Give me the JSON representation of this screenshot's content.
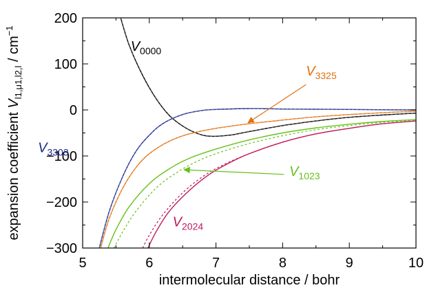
{
  "chart_data": {
    "type": "line",
    "title": "",
    "xlabel": "intermolecular distance / bohr",
    "ylabel": {
      "prefix": "expansion coefficient ",
      "symbol": "V",
      "subscript": "l1,μ1,l2,l",
      "unit": " / cm",
      "unit_exp": "−1"
    },
    "xlim": [
      5,
      10
    ],
    "ylim": [
      -300,
      200
    ],
    "xticks": [
      5,
      6,
      7,
      8,
      9,
      10
    ],
    "yticks": [
      -300,
      -200,
      -100,
      0,
      100,
      200
    ],
    "ytick_labels": [
      "−300",
      "−200",
      "−100",
      "0",
      "100",
      "200"
    ],
    "grid": false,
    "series": [
      {
        "name": "V0000",
        "label_main": "V",
        "label_sub": "0000",
        "color": "#000000",
        "style": "solid+dashed",
        "x": [
          5.57,
          5.7,
          5.9,
          6.1,
          6.3,
          6.5,
          6.7,
          6.9,
          7.2,
          7.5,
          8.0,
          8.5,
          9.0,
          9.5,
          10.0
        ],
        "y": [
          200,
          140,
          75,
          25,
          -12,
          -35,
          -50,
          -57,
          -55,
          -47,
          -34,
          -24,
          -16,
          -11,
          -7
        ]
      },
      {
        "name": "V3303",
        "label_main": "V",
        "label_sub": "3303",
        "color": "#1a2a8c",
        "style": "solid+dashed",
        "x": [
          5.25,
          5.4,
          5.6,
          5.8,
          6.0,
          6.2,
          6.5,
          6.8,
          7.0,
          7.5,
          8.0,
          8.5,
          9.0,
          10.0
        ],
        "y": [
          -300,
          -220,
          -145,
          -90,
          -55,
          -30,
          -10,
          -1,
          1,
          3,
          2,
          1.5,
          1,
          0
        ]
      },
      {
        "name": "V3325",
        "label_main": "V",
        "label_sub": "3325",
        "color": "#e07010",
        "style": "solid+dashed",
        "x": [
          5.27,
          5.4,
          5.6,
          5.8,
          6.0,
          6.3,
          6.6,
          7.0,
          7.5,
          8.0,
          8.5,
          9.0,
          9.5,
          10.0
        ],
        "y": [
          -300,
          -235,
          -170,
          -125,
          -95,
          -68,
          -52,
          -40,
          -30,
          -22,
          -15,
          -10,
          -6,
          -3
        ]
      },
      {
        "name": "V1023",
        "label_main": "V",
        "label_sub": "1023",
        "color": "#66c01a",
        "style": "solid",
        "x": [
          5.38,
          5.5,
          5.7,
          6.0,
          6.3,
          6.6,
          7.0,
          7.5,
          8.0,
          8.5,
          9.0,
          9.5,
          10.0
        ],
        "y": [
          -300,
          -260,
          -210,
          -160,
          -128,
          -105,
          -85,
          -65,
          -50,
          -39,
          -31,
          -25,
          -21
        ]
      },
      {
        "name": "V1023 (dashed)",
        "color": "#66c01a",
        "style": "dashed",
        "x": [
          5.47,
          5.6,
          5.8,
          6.1,
          6.4,
          6.7,
          7.0,
          7.5,
          8.0,
          8.5,
          9.0,
          9.5,
          10.0
        ],
        "y": [
          -300,
          -265,
          -220,
          -170,
          -137,
          -113,
          -95,
          -73,
          -56,
          -43,
          -34,
          -27,
          -22
        ]
      },
      {
        "name": "V2024",
        "label_main": "V",
        "label_sub": "2024",
        "color": "#c0185a",
        "style": "solid",
        "x": [
          5.98,
          6.1,
          6.3,
          6.6,
          6.9,
          7.2,
          7.5,
          8.0,
          8.5,
          9.0,
          9.5,
          10.0
        ],
        "y": [
          -300,
          -265,
          -220,
          -175,
          -140,
          -115,
          -95,
          -70,
          -52,
          -40,
          -30,
          -24
        ]
      },
      {
        "name": "V2024 (dashed)",
        "color": "#c0185a",
        "style": "dashed",
        "x": [
          5.9,
          6.0,
          6.2,
          6.5,
          6.8,
          7.1,
          7.5,
          8.0,
          8.5,
          9.0,
          9.5,
          10.0
        ],
        "y": [
          -300,
          -272,
          -228,
          -180,
          -145,
          -120,
          -95,
          -70,
          -52,
          -40,
          -30,
          -24
        ]
      }
    ],
    "annotations": [
      {
        "series": "V0000",
        "sub": "0000",
        "color": "#000000",
        "at": [
          5.72,
          128
        ]
      },
      {
        "series": "V3303",
        "sub": "3303",
        "color": "#1a2a8c",
        "at": [
          4.33,
          -92
        ]
      },
      {
        "series": "V3325",
        "sub": "3325",
        "color": "#e07010",
        "at": [
          8.35,
          75
        ],
        "arrow_from": [
          8.35,
          55
        ],
        "arrow_to": [
          7.48,
          -28
        ]
      },
      {
        "series": "V1023",
        "sub": "1023",
        "color": "#66c01a",
        "at": [
          8.1,
          -143
        ],
        "arrow_from": [
          8.02,
          -140
        ],
        "arrow_to": [
          6.52,
          -130
        ]
      },
      {
        "series": "V2024",
        "sub": "2024",
        "color": "#c0185a",
        "at": [
          6.35,
          -253
        ]
      }
    ]
  }
}
